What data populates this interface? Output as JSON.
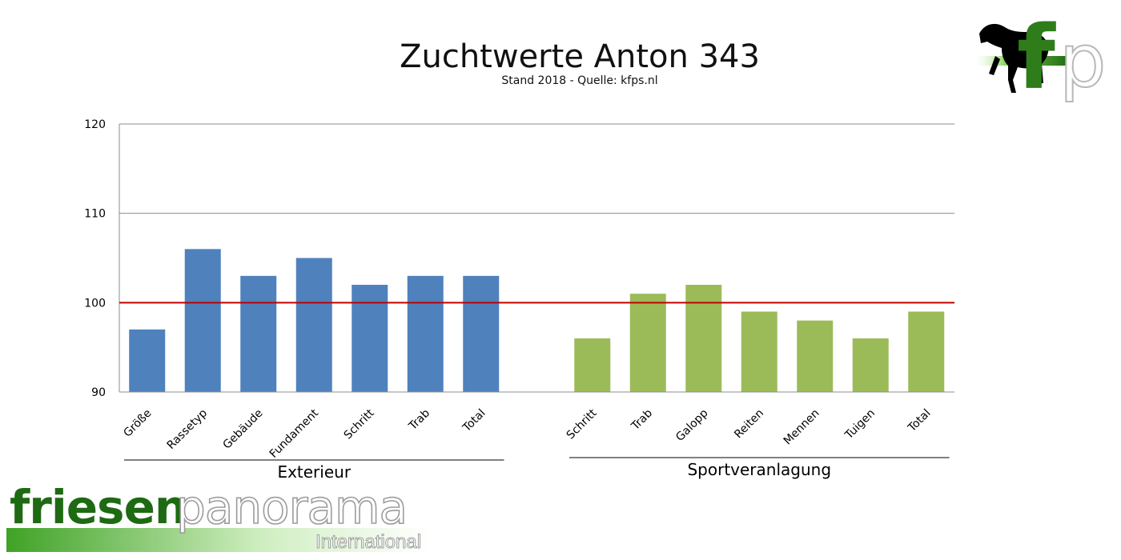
{
  "title": "Zuchtwerte Anton 343",
  "subtitle": "Stand 2018 - Quelle: kfps.nl",
  "logo_fp": {
    "icon": "horse-icon",
    "letters": "fp"
  },
  "brand": {
    "part1": "friesen",
    "part2": "panorama",
    "part3": "International"
  },
  "colors": {
    "exterieur": "#4F81BD",
    "sport": "#9BBB59",
    "reference": "#C00000"
  },
  "chart_data": {
    "type": "bar",
    "ylim": [
      90,
      120
    ],
    "yticks": [
      90,
      100,
      110,
      120
    ],
    "grid": true,
    "reference_line": 100,
    "groups": [
      {
        "name": "Exterieur",
        "categories": [
          "Größe",
          "Rassetyp",
          "Gebäude",
          "Fundament",
          "Schritt",
          "Trab",
          "Total"
        ],
        "values": [
          97,
          106,
          103,
          105,
          102,
          103,
          103
        ]
      },
      {
        "name": "Sportveranlagung",
        "categories": [
          "Schritt",
          "Trab",
          "Galopp",
          "Reiten",
          "Mennen",
          "Tuigen",
          "Total"
        ],
        "values": [
          96,
          101,
          102,
          99,
          98,
          96,
          99
        ]
      }
    ]
  }
}
